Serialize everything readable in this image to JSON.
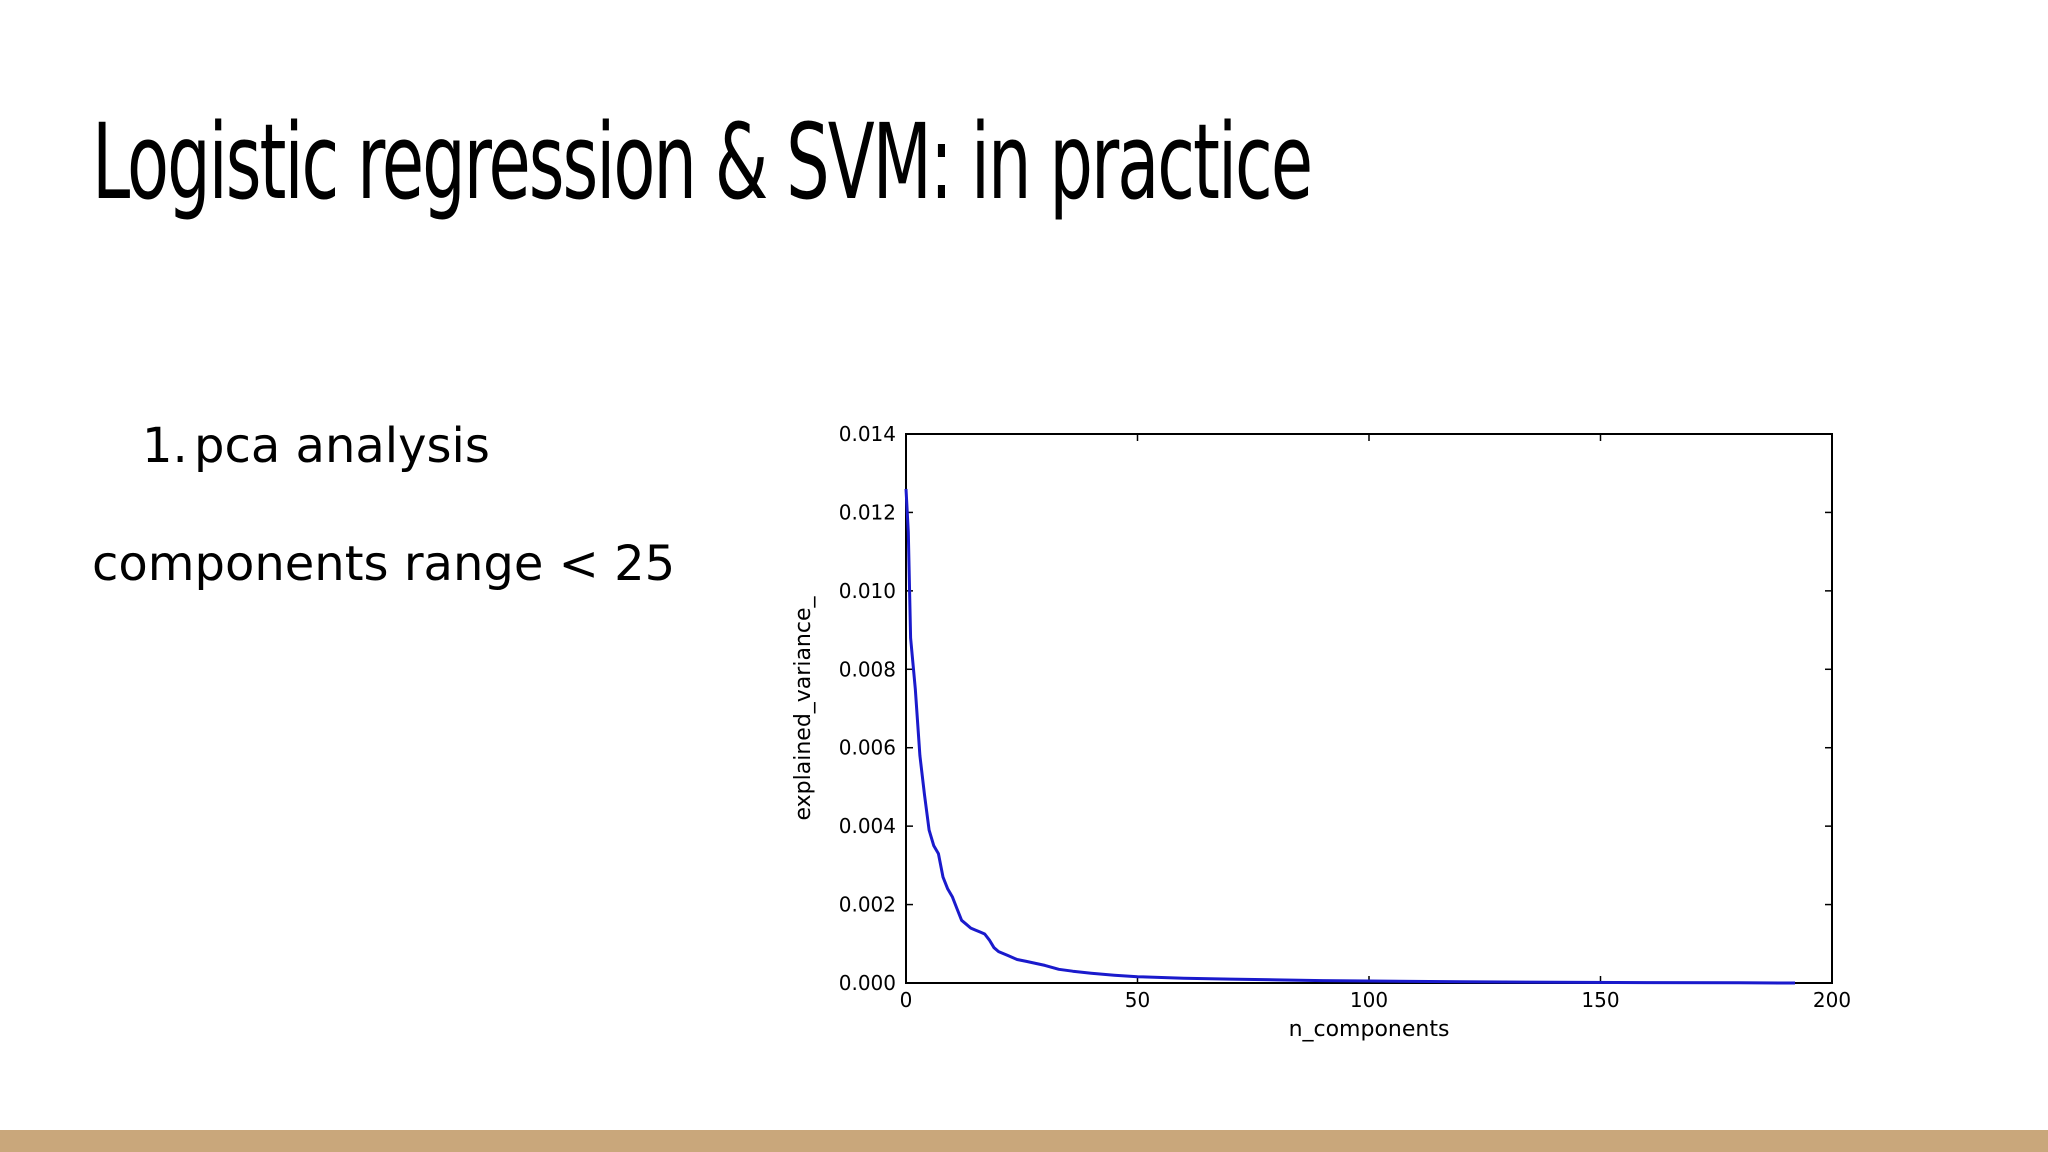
{
  "slide": {
    "title": "Logistic regression & SVM: in practice",
    "list": [
      {
        "number": "1.",
        "text": "pca analysis"
      }
    ],
    "body": "components range < 25",
    "footer_color": "#c9a77b"
  },
  "chart_data": {
    "type": "line",
    "title": "",
    "xlabel": "n_components",
    "ylabel": "explained_variance_",
    "xlim": [
      0,
      200
    ],
    "ylim": [
      0,
      0.014
    ],
    "xticks": [
      0,
      50,
      100,
      150,
      200
    ],
    "xtick_labels": [
      "0",
      "50",
      "100",
      "150",
      "200"
    ],
    "yticks": [
      0,
      0.002,
      0.004,
      0.006,
      0.008,
      0.01,
      0.012,
      0.014
    ],
    "ytick_labels": [
      "0.000",
      "0.002",
      "0.004",
      "0.006",
      "0.008",
      "0.010",
      "0.012",
      "0.014"
    ],
    "grid": false,
    "series": [
      {
        "color": "#1a1acc",
        "x": [
          0,
          0.5,
          1,
          2,
          3,
          4,
          5,
          6,
          7,
          8,
          9,
          10,
          11,
          12,
          13,
          14,
          15,
          16,
          17,
          18,
          19,
          20,
          22,
          24,
          26,
          28,
          30,
          33,
          36,
          40,
          45,
          50,
          60,
          70,
          80,
          90,
          100,
          120,
          140,
          160,
          180,
          192
        ],
        "y": [
          0.0126,
          0.0115,
          0.0088,
          0.0075,
          0.0058,
          0.0048,
          0.0039,
          0.0035,
          0.0033,
          0.0027,
          0.0024,
          0.0022,
          0.0019,
          0.0016,
          0.0015,
          0.0014,
          0.00135,
          0.0013,
          0.00125,
          0.0011,
          0.0009,
          0.0008,
          0.0007,
          0.0006,
          0.00055,
          0.0005,
          0.00045,
          0.00035,
          0.0003,
          0.00025,
          0.0002,
          0.00016,
          0.00012,
          0.0001,
          8e-05,
          6e-05,
          5e-05,
          3e-05,
          2e-05,
          1e-05,
          5e-06,
          0.0
        ]
      }
    ]
  }
}
